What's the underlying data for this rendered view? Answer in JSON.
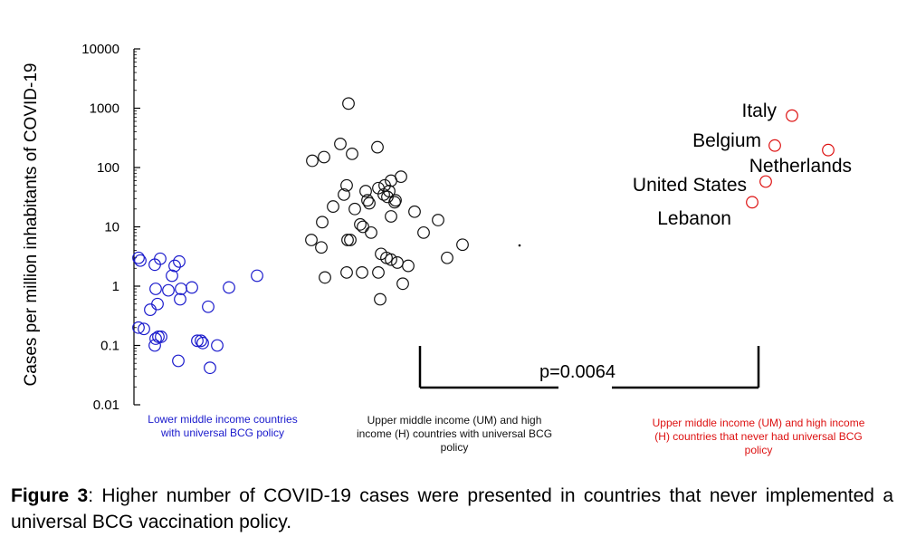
{
  "chart_data": {
    "type": "scatter",
    "ylabel": "Cases per million inhabitants of COVID-19",
    "yscale": "log",
    "ylim": [
      0.01,
      10000
    ],
    "yticks": [
      "0.01",
      "0.1",
      "1",
      "10",
      "100",
      "1000",
      "10000"
    ],
    "grid": false,
    "groups": [
      {
        "label": "Lower middle income countries with universal BCG policy",
        "label_lines": [
          "Lower middle income countries",
          "with universal BCG policy"
        ],
        "color": "#1a1acc",
        "x": [
          153,
          155,
          171,
          177,
          198,
          193,
          190,
          200,
          172,
          186,
          212,
          174,
          166,
          199,
          218,
          253,
          284,
          230,
          153,
          159,
          172,
          178,
          175,
          171,
          224,
          222,
          240,
          197,
          232
        ],
        "y": [
          3.0,
          2.7,
          2.3,
          2.9,
          2.6,
          2.2,
          1.5,
          0.9,
          0.9,
          0.85,
          0.95,
          0.5,
          0.4,
          0.6,
          0.12,
          0.95,
          1.5,
          0.45,
          0.2,
          0.19,
          0.13,
          0.14,
          0.14,
          0.1,
          0.11,
          0.12,
          0.1,
          0.055,
          0.042
        ]
      },
      {
        "label": "Upper middle income (UM) and high income (H) countries with universal BCG policy",
        "label_lines": [
          "Upper middle income (UM)  and high",
          "income (H) countries with universal BCG",
          "policy"
        ],
        "color": "#111111",
        "x": [
          385,
          376,
          389,
          417,
          345,
          358,
          443,
          383,
          404,
          418,
          432,
          425,
          430,
          424,
          428,
          437,
          380,
          368,
          392,
          408,
          436,
          406,
          356,
          398,
          458,
          484,
          432,
          468,
          387,
          410,
          401,
          344,
          355,
          384,
          421,
          427,
          439,
          494,
          511,
          432,
          451,
          383,
          359,
          400,
          418,
          445,
          420
        ],
        "y": [
          1200,
          250,
          170,
          220,
          130,
          150,
          70,
          50,
          40,
          45,
          60,
          50,
          40,
          35,
          32,
          28,
          35,
          22,
          20,
          25,
          26,
          28,
          12,
          11,
          18,
          13,
          15,
          8,
          6,
          8,
          10,
          6,
          4.5,
          6,
          3.5,
          3,
          2.5,
          3,
          5,
          2.8,
          2.2,
          1.7,
          1.4,
          1.7,
          1.7,
          1.1,
          0.6
        ]
      },
      {
        "label": "Upper middle income (UM)  and high income (H) countries that never had universal BCG policy",
        "label_lines": [
          "Upper middle income (UM)  and high income",
          "(H) countries that never had universal BCG",
          "policy"
        ],
        "color": "#dd1111",
        "points": [
          {
            "name": "Italy",
            "x": 875,
            "y": 750
          },
          {
            "name": "Belgium",
            "x": 856,
            "y": 235
          },
          {
            "name": "Netherlands",
            "x": 915,
            "y": 197
          },
          {
            "name": "United States",
            "x": 846,
            "y": 58
          },
          {
            "name": "Lebanon",
            "x": 831,
            "y": 26
          }
        ]
      }
    ],
    "annotations": {
      "p_value": "p=0.0064"
    }
  },
  "caption": {
    "label": "Figure 3",
    "text": ":  Higher number of COVID-19 cases were presented in countries that never implemented a universal BCG vaccination policy."
  }
}
